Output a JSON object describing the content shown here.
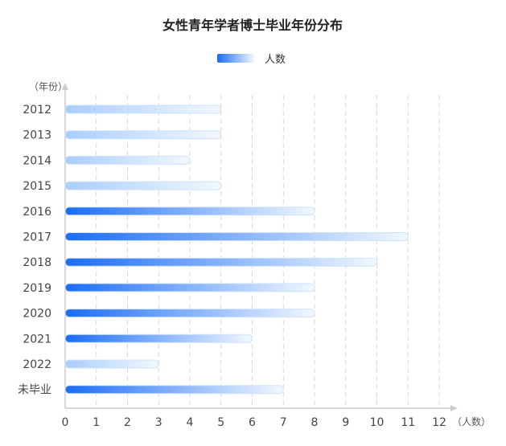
{
  "chart_data": {
    "type": "bar",
    "orientation": "horizontal",
    "title": "女性青年学者博士毕业年份分布",
    "categories": [
      "2012",
      "2013",
      "2014",
      "2015",
      "2016",
      "2017",
      "2018",
      "2019",
      "2020",
      "2021",
      "2022",
      "未毕业"
    ],
    "series": [
      {
        "name": "人数",
        "values": [
          5,
          5,
          4,
          5,
          8,
          11,
          10,
          8,
          8,
          6,
          3,
          7
        ]
      }
    ],
    "xlabel": "（人数）",
    "ylabel": "（年份）",
    "xlim": [
      0,
      12
    ],
    "xticks": [
      "0",
      "1",
      "2",
      "3",
      "4",
      "5",
      "6",
      "7",
      "8",
      "9",
      "10",
      "11",
      "12"
    ],
    "grid": "vertical-dashed",
    "legend_position": "top-center",
    "colors": {
      "bar_strong": "#1a6cf5",
      "bar_light": "#a9cdfb",
      "bar_end": "#f2f8ff",
      "grid": "#d9d9d9",
      "axis": "#cccccc"
    }
  }
}
